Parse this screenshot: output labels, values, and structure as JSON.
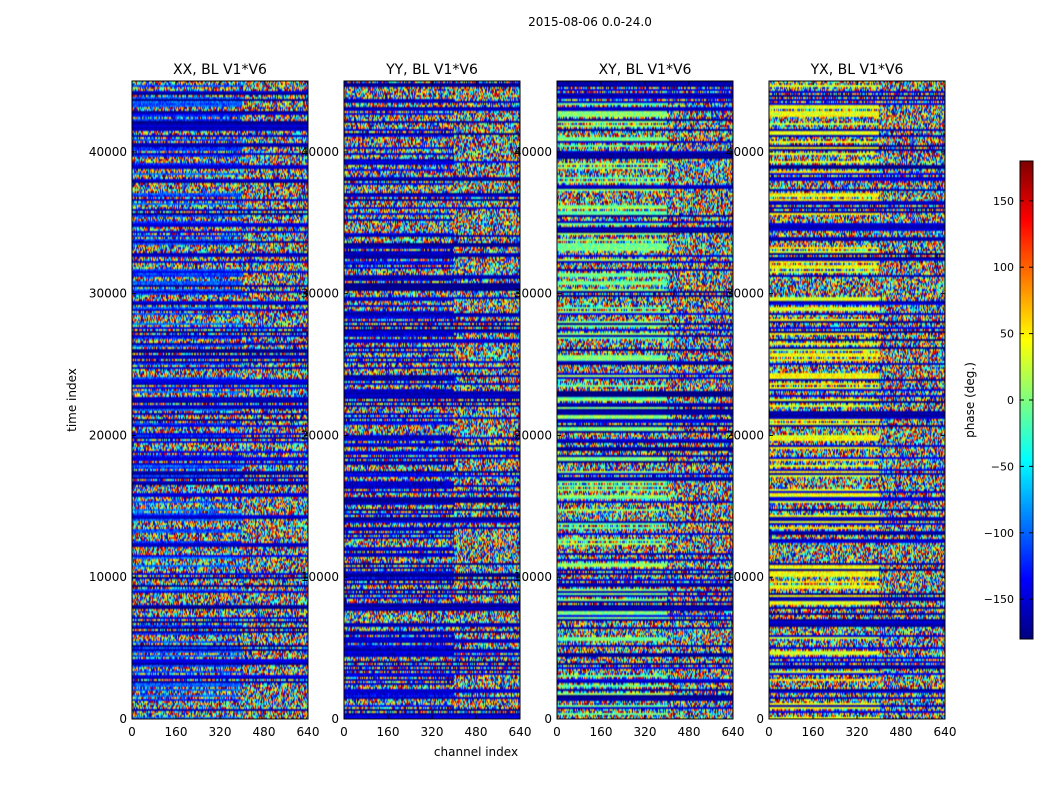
{
  "chart_data": {
    "type": "heatmap",
    "title": "2015-08-06 0.0-24.0",
    "xlabel": "channel index",
    "ylabel": "time index",
    "xlim": [
      0,
      640
    ],
    "ylim": [
      0,
      45000
    ],
    "xticks": [
      "0",
      "160",
      "320",
      "480",
      "640"
    ],
    "yticks": [
      "0",
      "10000",
      "20000",
      "30000",
      "40000"
    ],
    "xtick_values": [
      0,
      160,
      320,
      480,
      640
    ],
    "ytick_values": [
      0,
      10000,
      20000,
      30000,
      40000
    ],
    "panels": [
      {
        "title": "XX, BL V1*V6",
        "offset": -110
      },
      {
        "title": "YY, BL V1*V6",
        "offset": -150
      },
      {
        "title": "XY, BL V1*V6",
        "offset": 0
      },
      {
        "title": "YX, BL V1*V6",
        "offset": 40
      }
    ],
    "colorbar": {
      "label": "phase (deg.)",
      "range": [
        -180,
        180
      ],
      "tick_values": [
        -150,
        -100,
        -50,
        0,
        50,
        100,
        150
      ],
      "tick_labels": [
        "−150",
        "−100",
        "−50",
        "0",
        "50",
        "100",
        "150"
      ],
      "colormap": [
        "#00007f",
        "#0000ff",
        "#007fff",
        "#00ffff",
        "#7fff7f",
        "#ffff00",
        "#ff7f00",
        "#ff0000",
        "#7f0000"
      ]
    }
  }
}
